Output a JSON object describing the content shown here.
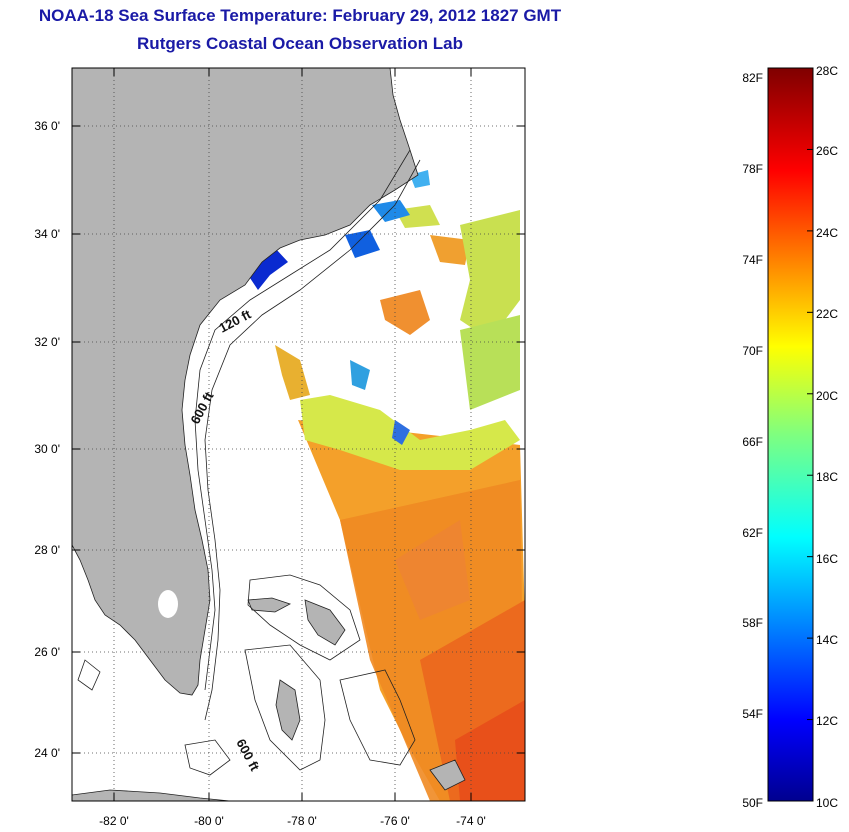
{
  "header": {
    "title": "NOAA-18 Sea Surface Temperature:  February 29, 2012 1827 GMT",
    "subtitle": "Rutgers Coastal Ocean Observation Lab"
  },
  "map": {
    "lat_labels": [
      "36 0'",
      "34 0'",
      "32 0'",
      "30 0'",
      "28 0'",
      "26 0'",
      "24 0'"
    ],
    "lon_labels": [
      "-82 0'",
      "-80 0'",
      "-78 0'",
      "-76 0'",
      "-74 0'"
    ],
    "isobath_labels": [
      "120 ft",
      "600 ft",
      "600 ft"
    ],
    "land_color": "#b4b4b4"
  },
  "colorbar": {
    "fahrenheit_labels": [
      "82F",
      "78F",
      "74F",
      "70F",
      "66F",
      "62F",
      "58F",
      "54F",
      "50F"
    ],
    "celsius_labels": [
      "28C",
      "26C",
      "24C",
      "22C",
      "20C",
      "18C",
      "16C",
      "14C",
      "12C",
      "10C"
    ],
    "range_c": [
      10,
      28
    ],
    "colormap": "jet"
  }
}
